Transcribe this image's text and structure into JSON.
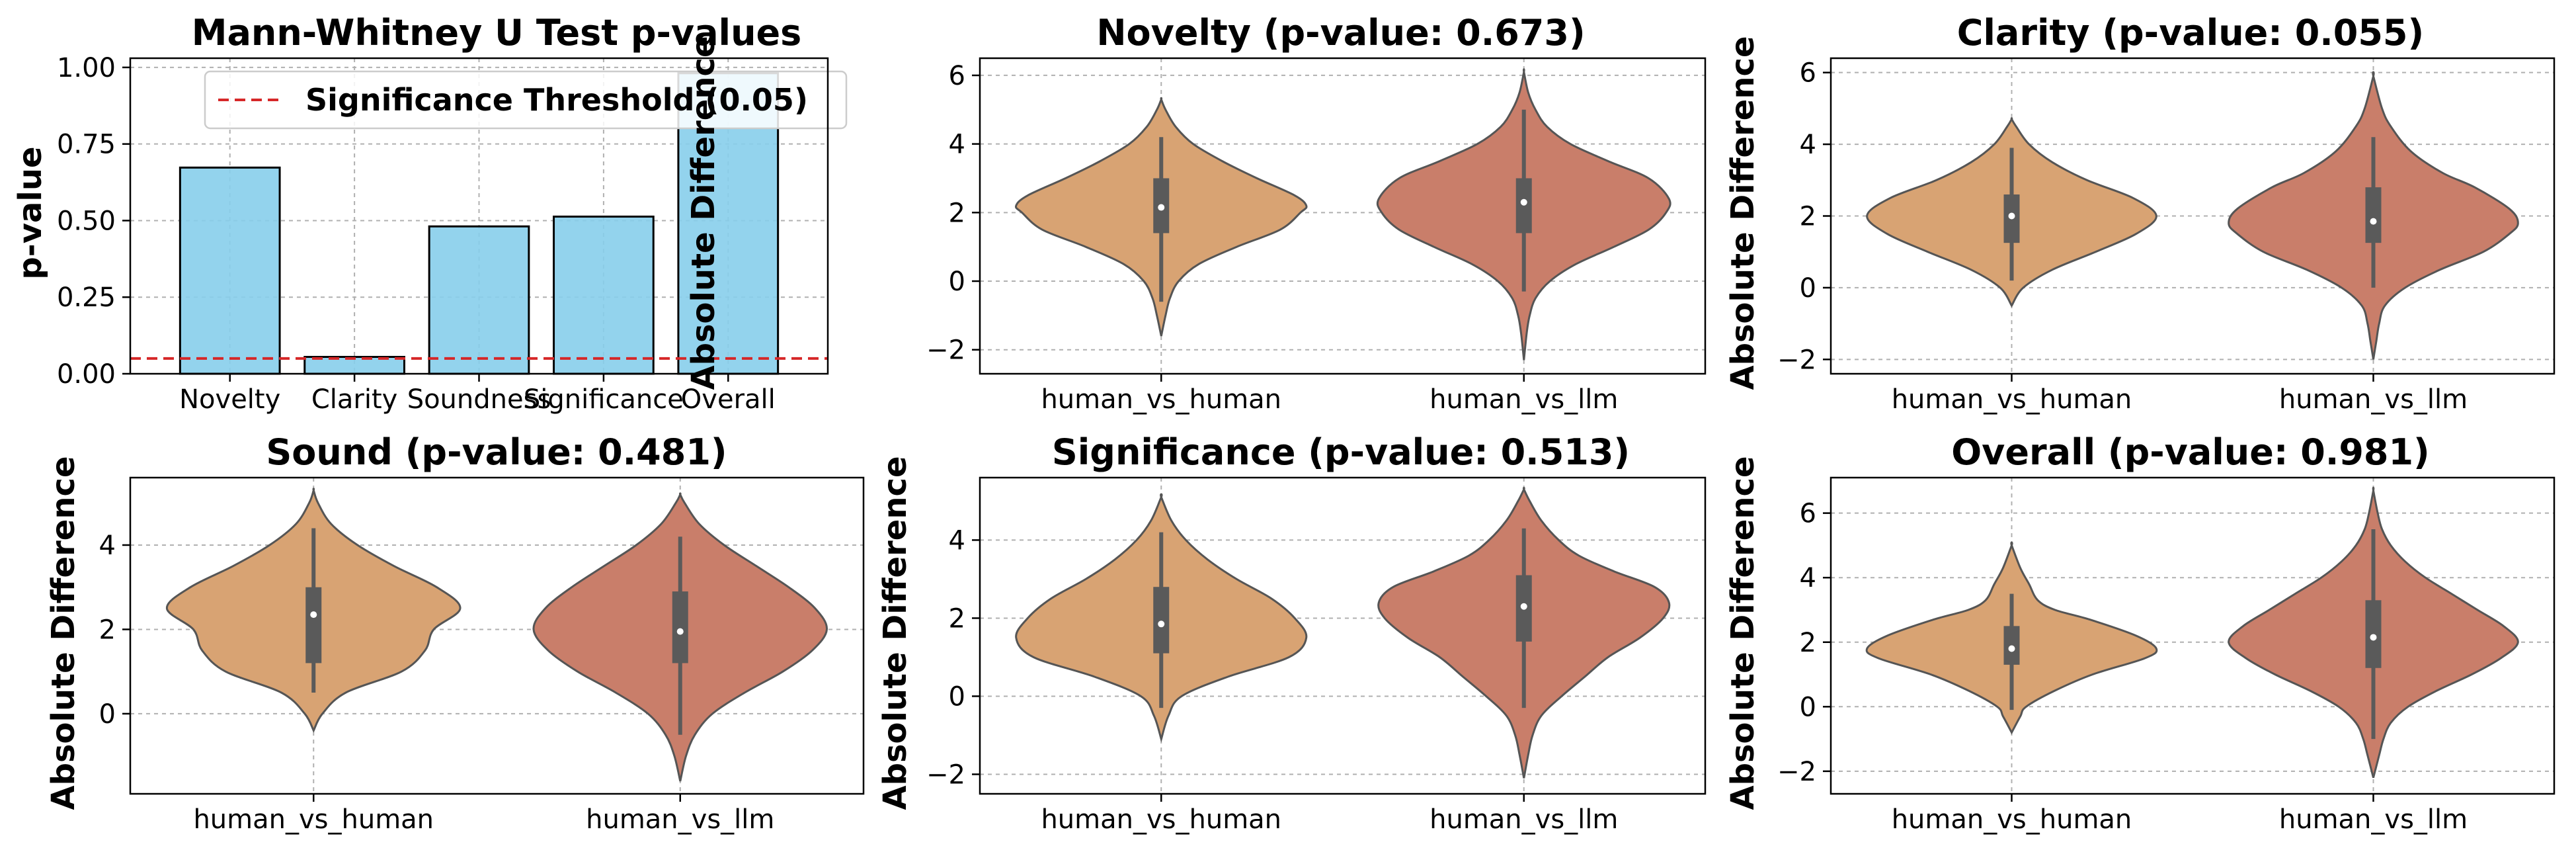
{
  "chart_data": [
    {
      "id": "pvals",
      "type": "bar",
      "title": "Mann-Whitney U Test p-values",
      "xlabel": "",
      "ylabel": "p-value",
      "categories": [
        "Novelty",
        "Clarity",
        "Soundness",
        "Significance",
        "Overall"
      ],
      "values": [
        0.673,
        0.055,
        0.481,
        0.513,
        0.981
      ],
      "ylim": [
        0,
        1.03
      ],
      "yticks": [
        0.0,
        0.25,
        0.5,
        0.75,
        1.0
      ],
      "ytick_labels": [
        "0.00",
        "0.25",
        "0.50",
        "0.75",
        "1.00"
      ],
      "threshold": 0.05,
      "legend": "Significance Threshold (0.05)",
      "legend_position": "top-right",
      "colors": {
        "bar": "#87CEEB",
        "threshold": "#d62728"
      },
      "grid": true
    },
    {
      "id": "novelty",
      "type": "violin",
      "title": "Novelty (p-value: 0.673)",
      "xlabel": "",
      "ylabel": "Absolute Difference",
      "categories": [
        "human_vs_human",
        "human_vs_llm"
      ],
      "ylim": [
        -2.7,
        6.5
      ],
      "yticks": [
        -2,
        0,
        2,
        4,
        6
      ],
      "grid": true,
      "groups": [
        {
          "min": -1.6,
          "max": 5.3,
          "profile": [
            [
              -1.6,
              0
            ],
            [
              -1,
              0.03
            ],
            [
              -0.5,
              0.06
            ],
            [
              0,
              0.12
            ],
            [
              0.5,
              0.26
            ],
            [
              1,
              0.52
            ],
            [
              1.5,
              0.82
            ],
            [
              2,
              0.96
            ],
            [
              2.2,
              1.0
            ],
            [
              2.5,
              0.92
            ],
            [
              3,
              0.66
            ],
            [
              3.5,
              0.42
            ],
            [
              4,
              0.22
            ],
            [
              4.5,
              0.1
            ],
            [
              5,
              0.03
            ],
            [
              5.3,
              0
            ]
          ],
          "whisker": [
            -0.6,
            4.2
          ],
          "q1": 1.4,
          "median": 2.15,
          "q3": 3.0,
          "color": "#D8A373"
        },
        {
          "min": -2.3,
          "max": 6.1,
          "profile": [
            [
              -2.3,
              0
            ],
            [
              -1.5,
              0.02
            ],
            [
              -1,
              0.04
            ],
            [
              -0.5,
              0.08
            ],
            [
              0,
              0.18
            ],
            [
              0.5,
              0.36
            ],
            [
              1,
              0.62
            ],
            [
              1.5,
              0.86
            ],
            [
              2,
              0.98
            ],
            [
              2.4,
              1.0
            ],
            [
              3,
              0.86
            ],
            [
              3.5,
              0.58
            ],
            [
              4,
              0.32
            ],
            [
              4.5,
              0.16
            ],
            [
              5,
              0.08
            ],
            [
              5.5,
              0.03
            ],
            [
              6.1,
              0
            ]
          ],
          "whisker": [
            -0.3,
            5.0
          ],
          "q1": 1.4,
          "median": 2.3,
          "q3": 3.0,
          "color": "#C97E6A"
        }
      ]
    },
    {
      "id": "clarity",
      "type": "violin",
      "title": "Clarity (p-value: 0.055)",
      "xlabel": "",
      "ylabel": "Absolute Difference",
      "categories": [
        "human_vs_human",
        "human_vs_llm"
      ],
      "ylim": [
        -2.4,
        6.4
      ],
      "yticks": [
        -2,
        0,
        2,
        4,
        6
      ],
      "grid": true,
      "groups": [
        {
          "min": -0.5,
          "max": 4.7,
          "profile": [
            [
              -0.5,
              0
            ],
            [
              0,
              0.08
            ],
            [
              0.5,
              0.28
            ],
            [
              1,
              0.58
            ],
            [
              1.5,
              0.86
            ],
            [
              2,
              1.0
            ],
            [
              2.5,
              0.84
            ],
            [
              3,
              0.52
            ],
            [
              3.5,
              0.28
            ],
            [
              4,
              0.12
            ],
            [
              4.5,
              0.03
            ],
            [
              4.7,
              0
            ]
          ],
          "whisker": [
            0.2,
            3.9
          ],
          "q1": 1.25,
          "median": 2.0,
          "q3": 2.6,
          "color": "#D8A373"
        },
        {
          "min": -2.0,
          "max": 5.9,
          "profile": [
            [
              -2,
              0
            ],
            [
              -1.5,
              0.02
            ],
            [
              -1,
              0.04
            ],
            [
              -0.5,
              0.08
            ],
            [
              0,
              0.22
            ],
            [
              0.5,
              0.46
            ],
            [
              1,
              0.76
            ],
            [
              1.5,
              0.94
            ],
            [
              1.8,
              1.0
            ],
            [
              2.2,
              0.94
            ],
            [
              2.8,
              0.7
            ],
            [
              3.2,
              0.48
            ],
            [
              3.8,
              0.26
            ],
            [
              4.5,
              0.12
            ],
            [
              5,
              0.06
            ],
            [
              5.9,
              0
            ]
          ],
          "whisker": [
            0.0,
            4.2
          ],
          "q1": 1.25,
          "median": 1.85,
          "q3": 2.8,
          "color": "#C97E6A"
        }
      ]
    },
    {
      "id": "sound",
      "type": "violin",
      "title": "Sound (p-value: 0.481)",
      "xlabel": "",
      "ylabel": "Absolute Difference",
      "categories": [
        "human_vs_human",
        "human_vs_llm"
      ],
      "ylim": [
        -1.9,
        5.6
      ],
      "yticks": [
        0,
        2,
        4
      ],
      "grid": true,
      "groups": [
        {
          "min": -0.4,
          "max": 5.3,
          "profile": [
            [
              -0.4,
              0
            ],
            [
              0,
              0.06
            ],
            [
              0.5,
              0.22
            ],
            [
              1,
              0.6
            ],
            [
              1.5,
              0.76
            ],
            [
              2,
              0.82
            ],
            [
              2.5,
              1.0
            ],
            [
              3,
              0.84
            ],
            [
              3.5,
              0.55
            ],
            [
              4,
              0.3
            ],
            [
              4.5,
              0.12
            ],
            [
              5,
              0.03
            ],
            [
              5.3,
              0
            ]
          ],
          "whisker": [
            0.5,
            4.4
          ],
          "q1": 1.2,
          "median": 2.35,
          "q3": 3.0,
          "color": "#D8A373"
        },
        {
          "min": -1.6,
          "max": 5.2,
          "profile": [
            [
              -1.6,
              0
            ],
            [
              -1,
              0.04
            ],
            [
              -0.5,
              0.1
            ],
            [
              0,
              0.22
            ],
            [
              0.5,
              0.44
            ],
            [
              1,
              0.7
            ],
            [
              1.5,
              0.9
            ],
            [
              2,
              1.0
            ],
            [
              2.5,
              0.92
            ],
            [
              3,
              0.74
            ],
            [
              3.5,
              0.52
            ],
            [
              4,
              0.3
            ],
            [
              4.5,
              0.13
            ],
            [
              5,
              0.03
            ],
            [
              5.2,
              0
            ]
          ],
          "whisker": [
            -0.5,
            4.2
          ],
          "q1": 1.2,
          "median": 1.95,
          "q3": 2.9,
          "color": "#C97E6A"
        }
      ]
    },
    {
      "id": "significance",
      "type": "violin",
      "title": "Significance (p-value: 0.513)",
      "xlabel": "",
      "ylabel": "Absolute Difference",
      "categories": [
        "human_vs_human",
        "human_vs_llm"
      ],
      "ylim": [
        -2.5,
        5.6
      ],
      "yticks": [
        -2,
        0,
        2,
        4
      ],
      "grid": true,
      "groups": [
        {
          "min": -1.1,
          "max": 5.1,
          "profile": [
            [
              -1.1,
              0
            ],
            [
              -0.5,
              0.05
            ],
            [
              0,
              0.14
            ],
            [
              0.5,
              0.46
            ],
            [
              1,
              0.88
            ],
            [
              1.5,
              1.0
            ],
            [
              2,
              0.92
            ],
            [
              2.5,
              0.76
            ],
            [
              3,
              0.52
            ],
            [
              3.5,
              0.32
            ],
            [
              4,
              0.17
            ],
            [
              4.5,
              0.07
            ],
            [
              5.1,
              0
            ]
          ],
          "whisker": [
            -0.3,
            4.2
          ],
          "q1": 1.1,
          "median": 1.85,
          "q3": 2.8,
          "color": "#D8A373"
        },
        {
          "min": -2.1,
          "max": 5.3,
          "profile": [
            [
              -2.1,
              0
            ],
            [
              -1.5,
              0.03
            ],
            [
              -1,
              0.06
            ],
            [
              -0.5,
              0.12
            ],
            [
              0,
              0.26
            ],
            [
              0.5,
              0.42
            ],
            [
              1,
              0.58
            ],
            [
              1.5,
              0.8
            ],
            [
              2,
              0.96
            ],
            [
              2.4,
              1.0
            ],
            [
              2.8,
              0.9
            ],
            [
              3.2,
              0.62
            ],
            [
              3.6,
              0.38
            ],
            [
              4,
              0.24
            ],
            [
              4.5,
              0.12
            ],
            [
              5,
              0.04
            ],
            [
              5.3,
              0
            ]
          ],
          "whisker": [
            -0.3,
            4.3
          ],
          "q1": 1.4,
          "median": 2.3,
          "q3": 3.1,
          "color": "#C97E6A"
        }
      ]
    },
    {
      "id": "overall",
      "type": "violin",
      "title": "Overall (p-value: 0.981)",
      "xlabel": "",
      "ylabel": "Absolute Difference",
      "categories": [
        "human_vs_human",
        "human_vs_llm"
      ],
      "ylim": [
        -2.7,
        7.1
      ],
      "yticks": [
        -2,
        0,
        2,
        4,
        6
      ],
      "grid": true,
      "groups": [
        {
          "min": -0.8,
          "max": 5.0,
          "profile": [
            [
              -0.8,
              0
            ],
            [
              -0.3,
              0.06
            ],
            [
              0,
              0.1
            ],
            [
              0.5,
              0.3
            ],
            [
              1,
              0.56
            ],
            [
              1.5,
              0.92
            ],
            [
              1.8,
              1.0
            ],
            [
              2.2,
              0.86
            ],
            [
              2.7,
              0.54
            ],
            [
              3,
              0.3
            ],
            [
              3.3,
              0.18
            ],
            [
              3.8,
              0.12
            ],
            [
              4.3,
              0.06
            ],
            [
              5,
              0
            ]
          ],
          "whisker": [
            -0.1,
            3.5
          ],
          "q1": 1.3,
          "median": 1.8,
          "q3": 2.5,
          "color": "#D8A373"
        },
        {
          "min": -2.2,
          "max": 6.7,
          "profile": [
            [
              -2.2,
              0
            ],
            [
              -1.5,
              0.04
            ],
            [
              -1,
              0.07
            ],
            [
              -0.5,
              0.12
            ],
            [
              0,
              0.24
            ],
            [
              0.5,
              0.44
            ],
            [
              1,
              0.68
            ],
            [
              1.5,
              0.88
            ],
            [
              2,
              1.0
            ],
            [
              2.5,
              0.9
            ],
            [
              3,
              0.72
            ],
            [
              3.5,
              0.54
            ],
            [
              4,
              0.36
            ],
            [
              4.5,
              0.22
            ],
            [
              5,
              0.12
            ],
            [
              5.5,
              0.06
            ],
            [
              6,
              0.03
            ],
            [
              6.7,
              0
            ]
          ],
          "whisker": [
            -1.0,
            5.5
          ],
          "q1": 1.2,
          "median": 2.15,
          "q3": 3.3,
          "color": "#C97E6A"
        }
      ]
    }
  ]
}
